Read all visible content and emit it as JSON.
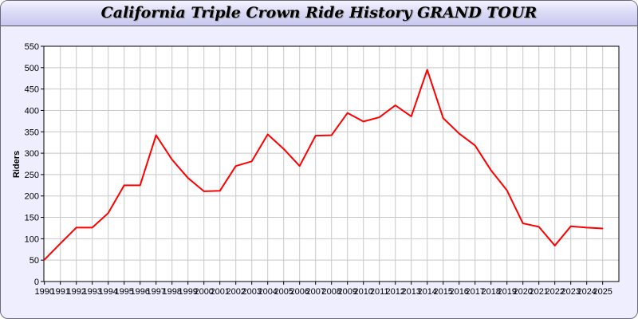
{
  "chart_data": {
    "type": "line",
    "title": "California Triple Crown Ride History GRAND TOUR",
    "xlabel": "",
    "ylabel": "Riders",
    "ylim": [
      0,
      550
    ],
    "yticks": [
      0,
      50,
      100,
      150,
      200,
      250,
      300,
      350,
      400,
      450,
      500,
      550
    ],
    "grid": true,
    "line_color": "#ff0000",
    "x": [
      "1990",
      "1991",
      "1992",
      "1993",
      "1994",
      "1995",
      "1996",
      "1997",
      "1998",
      "1999",
      "2000",
      "2001",
      "2002",
      "2003",
      "2004",
      "2005",
      "2006",
      "2007",
      "2008",
      "2009",
      "2010",
      "2011",
      "2012",
      "2013",
      "2014",
      "2015",
      "2016",
      "2017",
      "2018",
      "2019",
      "2020",
      "2021",
      "2022",
      "2023",
      "2024",
      "2025"
    ],
    "series": [
      {
        "values": [
          51,
          89,
          126,
          126,
          160,
          225,
          225,
          342,
          285,
          242,
          211,
          212,
          270,
          281,
          344,
          310,
          270,
          341,
          342,
          394,
          374,
          384,
          412,
          386,
          495,
          382,
          346,
          318,
          260,
          213,
          136,
          128,
          84,
          129,
          126,
          124
        ]
      }
    ]
  }
}
